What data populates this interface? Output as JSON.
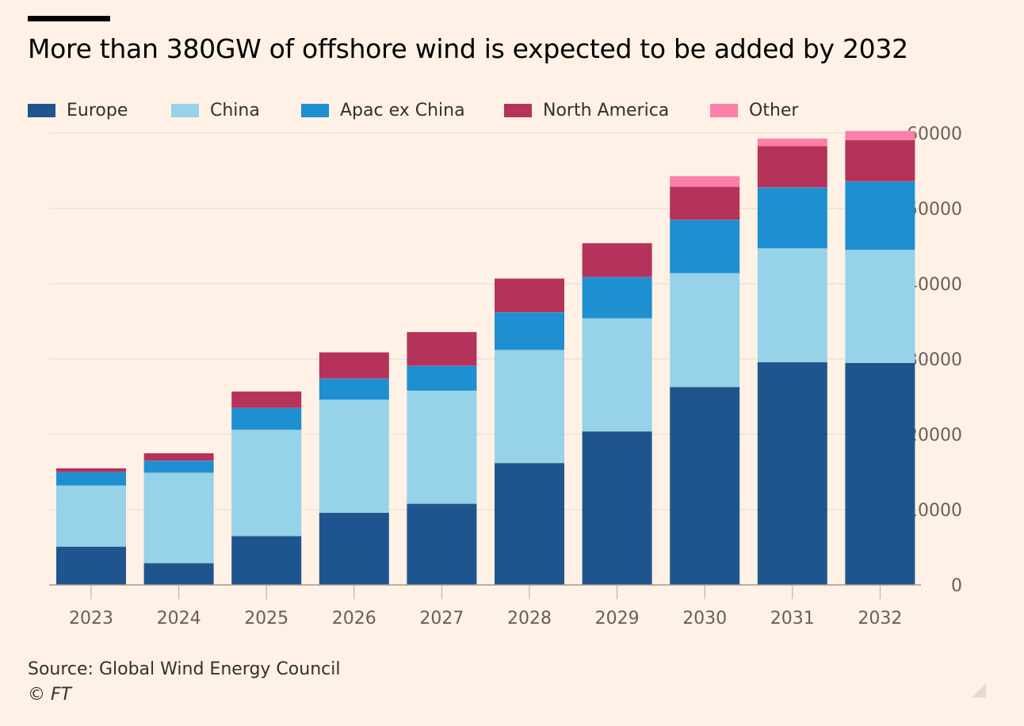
{
  "title": "More than 380GW of offshore wind is expected to be added by 2032",
  "source": "Source: Global Wind Energy Council",
  "credit": "© FT",
  "legend": [
    {
      "label": "Europe",
      "color": "#1F558E"
    },
    {
      "label": "China",
      "color": "#96D2E8"
    },
    {
      "label": "Apac ex China",
      "color": "#1E8FD0"
    },
    {
      "label": "North America",
      "color": "#B5325A"
    },
    {
      "label": "Other",
      "color": "#FB7FA8"
    }
  ],
  "chart_data": {
    "type": "bar",
    "stacked": true,
    "categories": [
      "2023",
      "2024",
      "2025",
      "2026",
      "2027",
      "2028",
      "2029",
      "2030",
      "2031",
      "2032"
    ],
    "series": [
      {
        "name": "Europe",
        "color": "#1F558E",
        "values": [
          5100,
          2900,
          6500,
          9600,
          10800,
          16200,
          20400,
          26300,
          29600,
          29500
        ]
      },
      {
        "name": "China",
        "color": "#96D2E8",
        "values": [
          8100,
          12000,
          14100,
          15000,
          15000,
          15000,
          15000,
          15100,
          15100,
          15000
        ]
      },
      {
        "name": "Apac ex China",
        "color": "#1E8FD0",
        "values": [
          1800,
          1600,
          2900,
          2800,
          3300,
          5000,
          5500,
          7100,
          8100,
          9100
        ]
      },
      {
        "name": "North America",
        "color": "#B5325A",
        "values": [
          500,
          1000,
          2200,
          3500,
          4500,
          4500,
          4500,
          4400,
          5500,
          5500
        ]
      },
      {
        "name": "Other",
        "color": "#FB7FA8",
        "values": [
          0,
          0,
          0,
          0,
          0,
          0,
          0,
          1400,
          1000,
          1200
        ]
      }
    ],
    "y_ticks": [
      "0",
      "10000",
      "20000",
      "30000",
      "40000",
      "50000",
      "60000"
    ],
    "ylim": [
      0,
      60000
    ],
    "y_axis_position": "right",
    "grid": true,
    "legend_position": "top",
    "xlabel": "",
    "ylabel": ""
  }
}
